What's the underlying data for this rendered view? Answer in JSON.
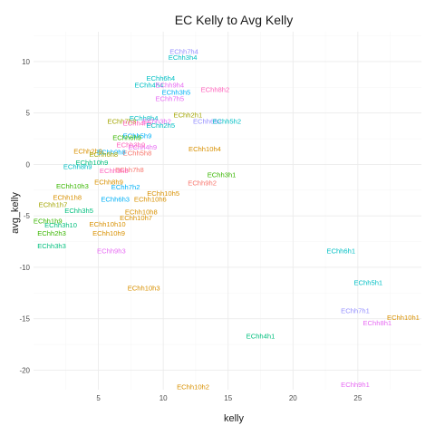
{
  "chart_data": {
    "type": "scatter",
    "title": "EC Kelly to Avg Kelly",
    "xlabel": "kelly",
    "ylabel": "avg_kelly",
    "xlim": [
      0.0,
      29.9
    ],
    "ylim": [
      -21.9,
      12.9
    ],
    "x_ticks": [
      5,
      10,
      15,
      20,
      25
    ],
    "y_ticks": [
      -20,
      -15,
      -10,
      -5,
      0,
      5,
      10
    ],
    "grid": true,
    "legend": "none",
    "mark": "text-label",
    "colors": [
      "#F8766D",
      "#D89000",
      "#A3A500",
      "#39B600",
      "#00BF7D",
      "#00BFC4",
      "#00B0F6",
      "#9590FF",
      "#E76BF3",
      "#FF62BC"
    ],
    "points": [
      {
        "label": "EChh7h4",
        "x": 11.6,
        "y": 11.0,
        "c": 7
      },
      {
        "label": "EChh3h4",
        "x": 11.5,
        "y": 10.4,
        "c": 5
      },
      {
        "label": "EChh6h4",
        "x": 9.8,
        "y": 8.4,
        "c": 5
      },
      {
        "label": "EChh4h4",
        "x": 8.9,
        "y": 7.7,
        "c": 5
      },
      {
        "label": "EChh9h4",
        "x": 10.5,
        "y": 7.7,
        "c": 8
      },
      {
        "label": "EChh8h2",
        "x": 14.0,
        "y": 7.3,
        "c": 9
      },
      {
        "label": "EChh3h5",
        "x": 11.0,
        "y": 7.0,
        "c": 6
      },
      {
        "label": "EChh7h5",
        "x": 10.5,
        "y": 6.4,
        "c": 8
      },
      {
        "label": "EChh2h1",
        "x": 11.9,
        "y": 4.8,
        "c": 2
      },
      {
        "label": "EChh6h2",
        "x": 13.4,
        "y": 4.2,
        "c": 7
      },
      {
        "label": "EChh5h2",
        "x": 14.9,
        "y": 4.2,
        "c": 5
      },
      {
        "label": "EChh8h4",
        "x": 8.5,
        "y": 4.5,
        "c": 5
      },
      {
        "label": "EChh3h2",
        "x": 9.5,
        "y": 4.2,
        "c": 8
      },
      {
        "label": "EChh7h3",
        "x": 6.8,
        "y": 4.2,
        "c": 2
      },
      {
        "label": "EChh4h5",
        "x": 8.0,
        "y": 4.0,
        "c": 9
      },
      {
        "label": "EChh2h5",
        "x": 9.8,
        "y": 3.8,
        "c": 5
      },
      {
        "label": "EChh5h9",
        "x": 8.0,
        "y": 2.8,
        "c": 6
      },
      {
        "label": "EChh6h9",
        "x": 7.2,
        "y": 2.6,
        "c": 3
      },
      {
        "label": "EChh10h4",
        "x": 13.2,
        "y": 1.5,
        "c": 1
      },
      {
        "label": "EChh4h9",
        "x": 8.4,
        "y": 1.7,
        "c": 8
      },
      {
        "label": "EChh3h9",
        "x": 7.5,
        "y": 1.9,
        "c": 9
      },
      {
        "label": "EChh5h8",
        "x": 8.0,
        "y": 1.1,
        "c": 0
      },
      {
        "label": "EChh2h9",
        "x": 4.2,
        "y": 1.3,
        "c": 1
      },
      {
        "label": "EChh9h8",
        "x": 6.0,
        "y": 1.2,
        "c": 6
      },
      {
        "label": "EChh6h8",
        "x": 5.4,
        "y": 1.0,
        "c": 2
      },
      {
        "label": "EChh10h9",
        "x": 4.5,
        "y": 0.2,
        "c": 4
      },
      {
        "label": "EChh8h9",
        "x": 3.4,
        "y": -0.2,
        "c": 5
      },
      {
        "label": "EChh7h8",
        "x": 7.4,
        "y": -0.5,
        "c": 0
      },
      {
        "label": "EChh3h8",
        "x": 6.2,
        "y": -0.6,
        "c": 9
      },
      {
        "label": "EChh3h1",
        "x": 14.5,
        "y": -1.0,
        "c": 3
      },
      {
        "label": "EChh9h2",
        "x": 13.0,
        "y": -1.8,
        "c": 0
      },
      {
        "label": "EChh8h9",
        "x": 5.8,
        "y": -1.7,
        "c": 1
      },
      {
        "label": "EChh10h3",
        "x": 3.0,
        "y": -2.1,
        "c": 3
      },
      {
        "label": "EChh7h2",
        "x": 7.1,
        "y": -2.2,
        "c": 6
      },
      {
        "label": "EChh10h5",
        "x": 10.0,
        "y": -2.8,
        "c": 1
      },
      {
        "label": "EChh1h8",
        "x": 2.6,
        "y": -3.2,
        "c": 1
      },
      {
        "label": "EChh6h3",
        "x": 6.3,
        "y": -3.4,
        "c": 6
      },
      {
        "label": "EChh10h6",
        "x": 9.0,
        "y": -3.4,
        "c": 1
      },
      {
        "label": "EChh1h7",
        "x": 1.5,
        "y": -3.9,
        "c": 2
      },
      {
        "label": "EChh10h8",
        "x": 8.3,
        "y": -4.6,
        "c": 1
      },
      {
        "label": "EChh3h5",
        "x": 3.5,
        "y": -4.5,
        "c": 4
      },
      {
        "label": "EChh10h7",
        "x": 7.9,
        "y": -5.2,
        "c": 1
      },
      {
        "label": "EChh1h9",
        "x": 1.1,
        "y": -5.5,
        "c": 3
      },
      {
        "label": "EChh10h10",
        "x": 5.7,
        "y": -5.8,
        "c": 1
      },
      {
        "label": "EChh3h10",
        "x": 2.1,
        "y": -5.9,
        "c": 4
      },
      {
        "label": "EChh2h3",
        "x": 1.4,
        "y": -6.7,
        "c": 3
      },
      {
        "label": "EChh10h9",
        "x": 5.8,
        "y": -6.7,
        "c": 1
      },
      {
        "label": "EChh3h3",
        "x": 1.4,
        "y": -7.9,
        "c": 4
      },
      {
        "label": "EChh9h3",
        "x": 6.0,
        "y": -8.4,
        "c": 8
      },
      {
        "label": "EChh6h1",
        "x": 23.7,
        "y": -8.4,
        "c": 5
      },
      {
        "label": "EChh5h1",
        "x": 25.8,
        "y": -11.5,
        "c": 5
      },
      {
        "label": "EChh10h3",
        "x": 8.5,
        "y": -12.0,
        "c": 1
      },
      {
        "label": "EChh7h1",
        "x": 24.8,
        "y": -14.2,
        "c": 7
      },
      {
        "label": "EChh10h1",
        "x": 28.5,
        "y": -14.9,
        "c": 1
      },
      {
        "label": "EChh8h1",
        "x": 26.5,
        "y": -15.4,
        "c": 8
      },
      {
        "label": "EChh4h1",
        "x": 17.5,
        "y": -16.7,
        "c": 4
      },
      {
        "label": "EChh10h2",
        "x": 12.3,
        "y": -21.6,
        "c": 1
      },
      {
        "label": "EChh9h1",
        "x": 24.8,
        "y": -21.4,
        "c": 8
      }
    ]
  }
}
